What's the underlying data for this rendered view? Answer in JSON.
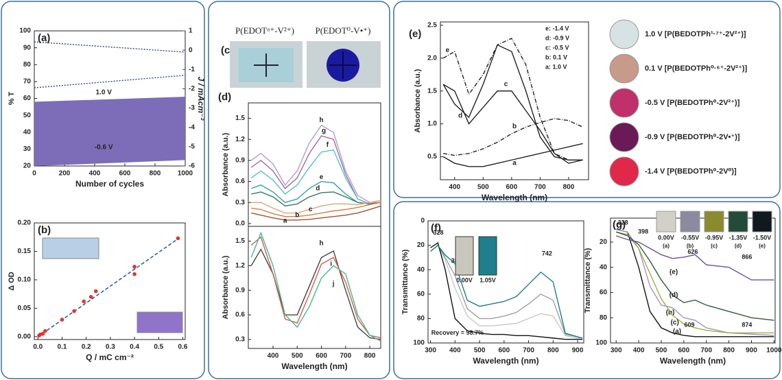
{
  "chart_data": [
    {
      "type": "line",
      "panel": "(a)",
      "xlabel": "Number of cycles",
      "ylabel": "% T",
      "y2label": "J / mAcm⁻²",
      "xlim": [
        0,
        1000
      ],
      "xticks": [
        0,
        200,
        400,
        600,
        800,
        1000
      ],
      "ylim": [
        20,
        100
      ],
      "yticks": [
        20,
        30,
        40,
        50,
        60,
        70,
        80,
        90,
        100
      ],
      "y2lim": [
        -6,
        1
      ],
      "y2ticks": [
        1,
        0,
        -1,
        -2,
        -3,
        -4,
        -5,
        -6
      ],
      "series": [
        {
          "name": "1.0 V",
          "x": [
            0,
            1000
          ],
          "values": [
            58,
            61
          ],
          "color": "#7d6cb8",
          "fill_to": 1,
          "label_at": [
            460,
            63.5
          ]
        },
        {
          "name": "-0.6 V",
          "x": [
            0,
            1000
          ],
          "values": [
            20,
            23.5
          ],
          "color": "#7d6cb8",
          "label_at": [
            460,
            31
          ]
        },
        {
          "x": [
            0,
            1000
          ],
          "values": [
            0.43,
            -0.1
          ],
          "color": "#2b3f9e",
          "axis": "y2",
          "dash": "dotted"
        },
        {
          "x": [
            0,
            1000
          ],
          "values": [
            -1.95,
            -1.3
          ],
          "color": "#2b3f9e",
          "axis": "y2",
          "dash": "dotted"
        }
      ]
    },
    {
      "type": "scatter",
      "panel": "(b)",
      "xlabel": "Q / mC cm⁻²",
      "ylabel": "Δ OD",
      "xlim": [
        -0.015,
        0.61
      ],
      "xticks": [
        {
          "value": 0,
          "label": "0.0"
        },
        0.1,
        0.2,
        0.3,
        0.4,
        0.5,
        0.6
      ],
      "ylim": [
        -0.005,
        0.2
      ],
      "yticks": [
        {
          "value": 0,
          "label": "0.00"
        },
        0.05,
        {
          "value": 0.1,
          "label": "0.10"
        },
        0.15,
        {
          "value": 0.2,
          "label": "0.20"
        }
      ],
      "color": "#e8322a",
      "x": [
        0.005,
        0.01,
        0.02,
        0.03,
        0.1,
        0.15,
        0.19,
        0.22,
        0.24,
        0.4,
        0.4,
        0.58
      ],
      "values": [
        0.002,
        0.004,
        0.005,
        0.01,
        0.03,
        0.045,
        0.062,
        0.07,
        0.08,
        0.11,
        0.123,
        0.173
      ],
      "fit": {
        "x": [
          0,
          0.58
        ],
        "values": [
          0,
          0.172
        ],
        "color": "#2a4f9e",
        "dash": "dashed"
      }
    },
    {
      "type": "line",
      "panel": "(d)",
      "ylabel": "Absorbance (a.u.)",
      "xlim": [
        298,
        845
      ],
      "ylim": [
        -0.04,
        1.72
      ],
      "yticks": [
        {
          "value": 0,
          "label": "0.0"
        },
        0.3,
        0.6,
        0.9,
        1.2,
        1.5
      ],
      "x": [
        310,
        350,
        400,
        450,
        500,
        550,
        600,
        650,
        700,
        750,
        800,
        845
      ],
      "series": [
        {
          "name": "h",
          "color": "#b79cc9",
          "values": [
            0.9,
            1.0,
            0.85,
            0.55,
            0.75,
            1.15,
            1.4,
            1.3,
            0.75,
            0.4,
            0.3,
            0.3
          ],
          "label_at": [
            600,
            1.47
          ]
        },
        {
          "name": "g",
          "color": "#a06aa8",
          "values": [
            0.8,
            0.9,
            0.75,
            0.5,
            0.65,
            1.0,
            1.25,
            1.2,
            0.7,
            0.35,
            0.28,
            0.3
          ],
          "label_at": [
            610,
            1.32
          ]
        },
        {
          "name": "f",
          "color": "#4fc2c9",
          "values": [
            0.65,
            0.75,
            0.62,
            0.42,
            0.55,
            0.8,
            1.02,
            1.05,
            0.65,
            0.35,
            0.28,
            0.3
          ],
          "label_at": [
            625,
            1.12
          ]
        },
        {
          "name": "e",
          "color": "#2aa59a",
          "values": [
            0.5,
            0.55,
            0.45,
            0.3,
            0.35,
            0.5,
            0.6,
            0.58,
            0.42,
            0.3,
            0.28,
            0.3
          ],
          "label_at": [
            600,
            0.66
          ]
        },
        {
          "name": "d",
          "color": "#3f7a6a",
          "values": [
            0.42,
            0.45,
            0.38,
            0.25,
            0.28,
            0.38,
            0.44,
            0.45,
            0.38,
            0.3,
            0.28,
            0.3
          ],
          "label_at": [
            585,
            0.5
          ]
        },
        {
          "name": "c",
          "color": "#e3a27a",
          "values": [
            0.3,
            0.3,
            0.22,
            0.15,
            0.15,
            0.2,
            0.25,
            0.28,
            0.28,
            0.27,
            0.3,
            0.33
          ],
          "label_at": [
            555,
            0.2
          ]
        },
        {
          "name": "b",
          "color": "#e07a3c",
          "values": [
            0.22,
            0.2,
            0.14,
            0.1,
            0.1,
            0.12,
            0.15,
            0.18,
            0.2,
            0.23,
            0.27,
            0.3
          ],
          "label_at": [
            500,
            0.12
          ]
        },
        {
          "name": "a",
          "color": "#a0522d",
          "values": [
            0.15,
            0.12,
            0.08,
            0.05,
            0.05,
            0.06,
            0.08,
            0.1,
            0.12,
            0.15,
            0.2,
            0.25
          ],
          "label_at": [
            450,
            0.04
          ]
        }
      ]
    },
    {
      "type": "line",
      "xlabel": "Wavelength (nm)",
      "ylabel": "Absorbance (a.u.)",
      "xlim": [
        298,
        845
      ],
      "xticks": [
        400,
        500,
        600,
        700,
        800
      ],
      "ylim": [
        0.19,
        1.68
      ],
      "yticks": [
        0.3,
        0.6,
        0.9,
        1.2,
        1.5
      ],
      "x": [
        310,
        350,
        400,
        450,
        500,
        550,
        600,
        650,
        700,
        750,
        800,
        845
      ],
      "series": [
        {
          "name": "h",
          "color": "#444444",
          "values": [
            1.2,
            1.4,
            1.1,
            0.6,
            0.6,
            0.95,
            1.3,
            1.38,
            0.9,
            0.45,
            0.32,
            0.3
          ],
          "label_at": [
            600,
            1.47
          ]
        },
        {
          "name": "i",
          "color": "#e0564e",
          "values": [
            1.45,
            1.55,
            1.1,
            0.55,
            0.5,
            0.85,
            1.22,
            1.3,
            1.0,
            0.55,
            0.35,
            0.32
          ],
          "label_at": [
            640,
            1.22
          ]
        },
        {
          "name": "j",
          "color": "#3cbf8a",
          "values": [
            1.3,
            1.6,
            1.2,
            0.6,
            0.45,
            0.7,
            1.05,
            1.2,
            1.1,
            0.6,
            0.35,
            0.28
          ],
          "label_at": [
            650,
            0.98
          ]
        }
      ]
    },
    {
      "type": "line",
      "panel": "(e)",
      "xlabel": "Wavelength (nm)",
      "ylabel": "Absorbance (a.u.)",
      "xlim": [
        350,
        870
      ],
      "xticks": [
        400,
        500,
        600,
        700,
        800
      ],
      "ylim": [
        0.15,
        2.55
      ],
      "yticks": [
        {
          "value": 0.5,
          "label": "0.5"
        },
        {
          "value": 1,
          "label": "1.0"
        },
        1.5,
        {
          "value": 2,
          "label": "2.0"
        },
        2.5
      ],
      "x": [
        360,
        400,
        450,
        500,
        550,
        600,
        650,
        700,
        750,
        800,
        850
      ],
      "series": [
        {
          "name": "e",
          "color": "#222222",
          "dash": "dashdot",
          "values": [
            2.0,
            2.1,
            1.45,
            1.75,
            2.2,
            2.3,
            1.9,
            1.1,
            0.55,
            0.45,
            0.45
          ],
          "label_at": [
            375,
            2.12
          ]
        },
        {
          "name": "d",
          "color": "#222222",
          "values": [
            1.6,
            1.3,
            1.1,
            1.6,
            2.2,
            2.1,
            1.5,
            0.8,
            0.5,
            0.45,
            0.45
          ],
          "label_at": [
            420,
            1.12
          ]
        },
        {
          "name": "c",
          "color": "#222222",
          "values": [
            1.6,
            1.5,
            1.0,
            1.25,
            1.5,
            1.5,
            1.2,
            0.9,
            0.55,
            0.4,
            0.45
          ],
          "label_at": [
            580,
            1.6
          ]
        },
        {
          "name": "b",
          "color": "#222222",
          "dash": "dashdot",
          "values": [
            0.55,
            0.52,
            0.55,
            0.62,
            0.72,
            0.85,
            0.95,
            1.02,
            1.08,
            1.05,
            0.95
          ],
          "label_at": [
            610,
            0.96
          ]
        },
        {
          "name": "a",
          "color": "#222222",
          "values": [
            0.5,
            0.4,
            0.35,
            0.35,
            0.4,
            0.45,
            0.5,
            0.55,
            0.6,
            0.65,
            0.7
          ],
          "label_at": [
            610,
            0.4
          ]
        }
      ],
      "legend_text": [
        "e: -1.4 V",
        "d: -0.9 V",
        "c: -0.5 V",
        "b: 0.1 V",
        "a: 1.0 V"
      ],
      "image_captions": [
        "1.0 V [P(BEDOTPh¹·⁷⁺-2V²⁺)]",
        "0.1 V [P(BEDOTPh⁰·⁶⁺-2V²⁺)]",
        "-0.5 V [P(BEDOTPh⁰-2V²⁺)]",
        "-0.9 V [P(BEDOTPh⁰-2V•⁺)]",
        "-1.4 V [P(BEDOTPh⁰-2V⁰)]"
      ]
    },
    {
      "type": "line",
      "panel": "(f)",
      "xlabel": "Wavelength (nm)",
      "ylabel": "Transmittance (%)",
      "invert_y": true,
      "xlim": [
        290,
        925
      ],
      "xticks": [
        300,
        400,
        500,
        600,
        700,
        800,
        900
      ],
      "ylim": [
        0,
        100
      ],
      "yticks": [
        0,
        20,
        40,
        60,
        80,
        100
      ],
      "x": [
        300,
        330,
        360,
        400,
        450,
        500,
        550,
        600,
        650,
        700,
        750,
        800,
        850,
        900,
        920
      ],
      "series": [
        {
          "color": "#c8c8c8",
          "values": [
            25,
            20,
            32,
            55,
            78,
            86,
            86,
            85,
            84,
            80,
            76,
            78,
            94,
            96,
            96
          ]
        },
        {
          "color": "#a0a0a0",
          "values": [
            25,
            20,
            30,
            45,
            72,
            80,
            80,
            78,
            75,
            68,
            60,
            65,
            93,
            95,
            96
          ]
        },
        {
          "color": "#111111",
          "values": [
            22,
            18,
            40,
            80,
            90,
            92,
            93,
            93,
            94,
            94,
            95,
            96,
            97,
            97,
            97
          ]
        },
        {
          "color": "#1a7f86",
          "values": [
            25,
            20,
            28,
            35,
            65,
            70,
            68,
            66,
            62,
            52,
            42,
            50,
            92,
            95,
            96
          ]
        }
      ],
      "annotations": [
        {
          "text": "328",
          "x": 332,
          "y": 10
        },
        {
          "text": "382",
          "x": 405,
          "y": 33
        },
        {
          "text": "742",
          "x": 775,
          "y": 27
        },
        {
          "text": "Recovery = 98.7%",
          "x": 410,
          "y": 92
        }
      ],
      "inset_labels": [
        "0.00V",
        "1.05V"
      ]
    },
    {
      "type": "line",
      "panel": "(g)",
      "xlabel": "Wavelength (nm)",
      "ylabel": "Transmittance (%)",
      "invert_y": true,
      "xlim": [
        275,
        1005
      ],
      "xticks": [
        300,
        400,
        500,
        600,
        700,
        800,
        900,
        1000
      ],
      "ylim": [
        1,
        100
      ],
      "yticks": [
        20,
        40,
        60,
        80,
        100
      ],
      "x": [
        300,
        350,
        400,
        450,
        500,
        550,
        600,
        650,
        700,
        800,
        900,
        1000
      ],
      "series": [
        {
          "name": "(a)",
          "color": "#111111",
          "values": [
            10,
            12,
            40,
            75,
            88,
            92,
            94,
            95,
            95,
            95,
            95,
            95
          ],
          "label_at": [
            570,
            91
          ]
        },
        {
          "name": "(b)",
          "color": "#a98fd0",
          "values": [
            10,
            12,
            25,
            55,
            70,
            72,
            80,
            82,
            88,
            92,
            93,
            94
          ],
          "label_at": [
            540,
            76
          ]
        },
        {
          "name": "(c)",
          "color": "#9cb33a",
          "values": [
            12,
            14,
            25,
            45,
            65,
            78,
            85,
            88,
            90,
            92,
            92,
            92
          ],
          "label_at": [
            560,
            84
          ]
        },
        {
          "name": "(d)",
          "color": "#2f5a3f",
          "values": [
            12,
            15,
            22,
            35,
            50,
            62,
            68,
            66,
            70,
            75,
            80,
            82
          ],
          "label_at": [
            555,
            62
          ]
        },
        {
          "name": "(e)",
          "color": "#6a4fa0",
          "values": [
            15,
            18,
            20,
            25,
            30,
            33,
            32,
            30,
            38,
            40,
            50,
            50
          ],
          "label_at": [
            555,
            44
          ]
        }
      ],
      "annotations": [
        {
          "text": "328",
          "x": 330,
          "y": 5
        },
        {
          "text": "398",
          "x": 420,
          "y": 12
        },
        {
          "text": "626",
          "x": 640,
          "y": 28
        },
        {
          "text": "866",
          "x": 880,
          "y": 32
        },
        {
          "text": "609",
          "x": 625,
          "y": 86
        },
        {
          "text": "874",
          "x": 880,
          "y": 86
        }
      ],
      "inset_labels": [
        "0.00V",
        "-0.55V",
        "-0.95V",
        "-1.35V",
        "-1.50V"
      ],
      "inset_sublabels": [
        "(a)",
        "(b)",
        "(c)",
        "(d)",
        "(e)"
      ]
    }
  ],
  "panel_c": {
    "label": "(c)",
    "captions": [
      "P(EDOTᵅ⁺-V²⁺)",
      "P(EDOT⁰-V•⁺)"
    ]
  }
}
